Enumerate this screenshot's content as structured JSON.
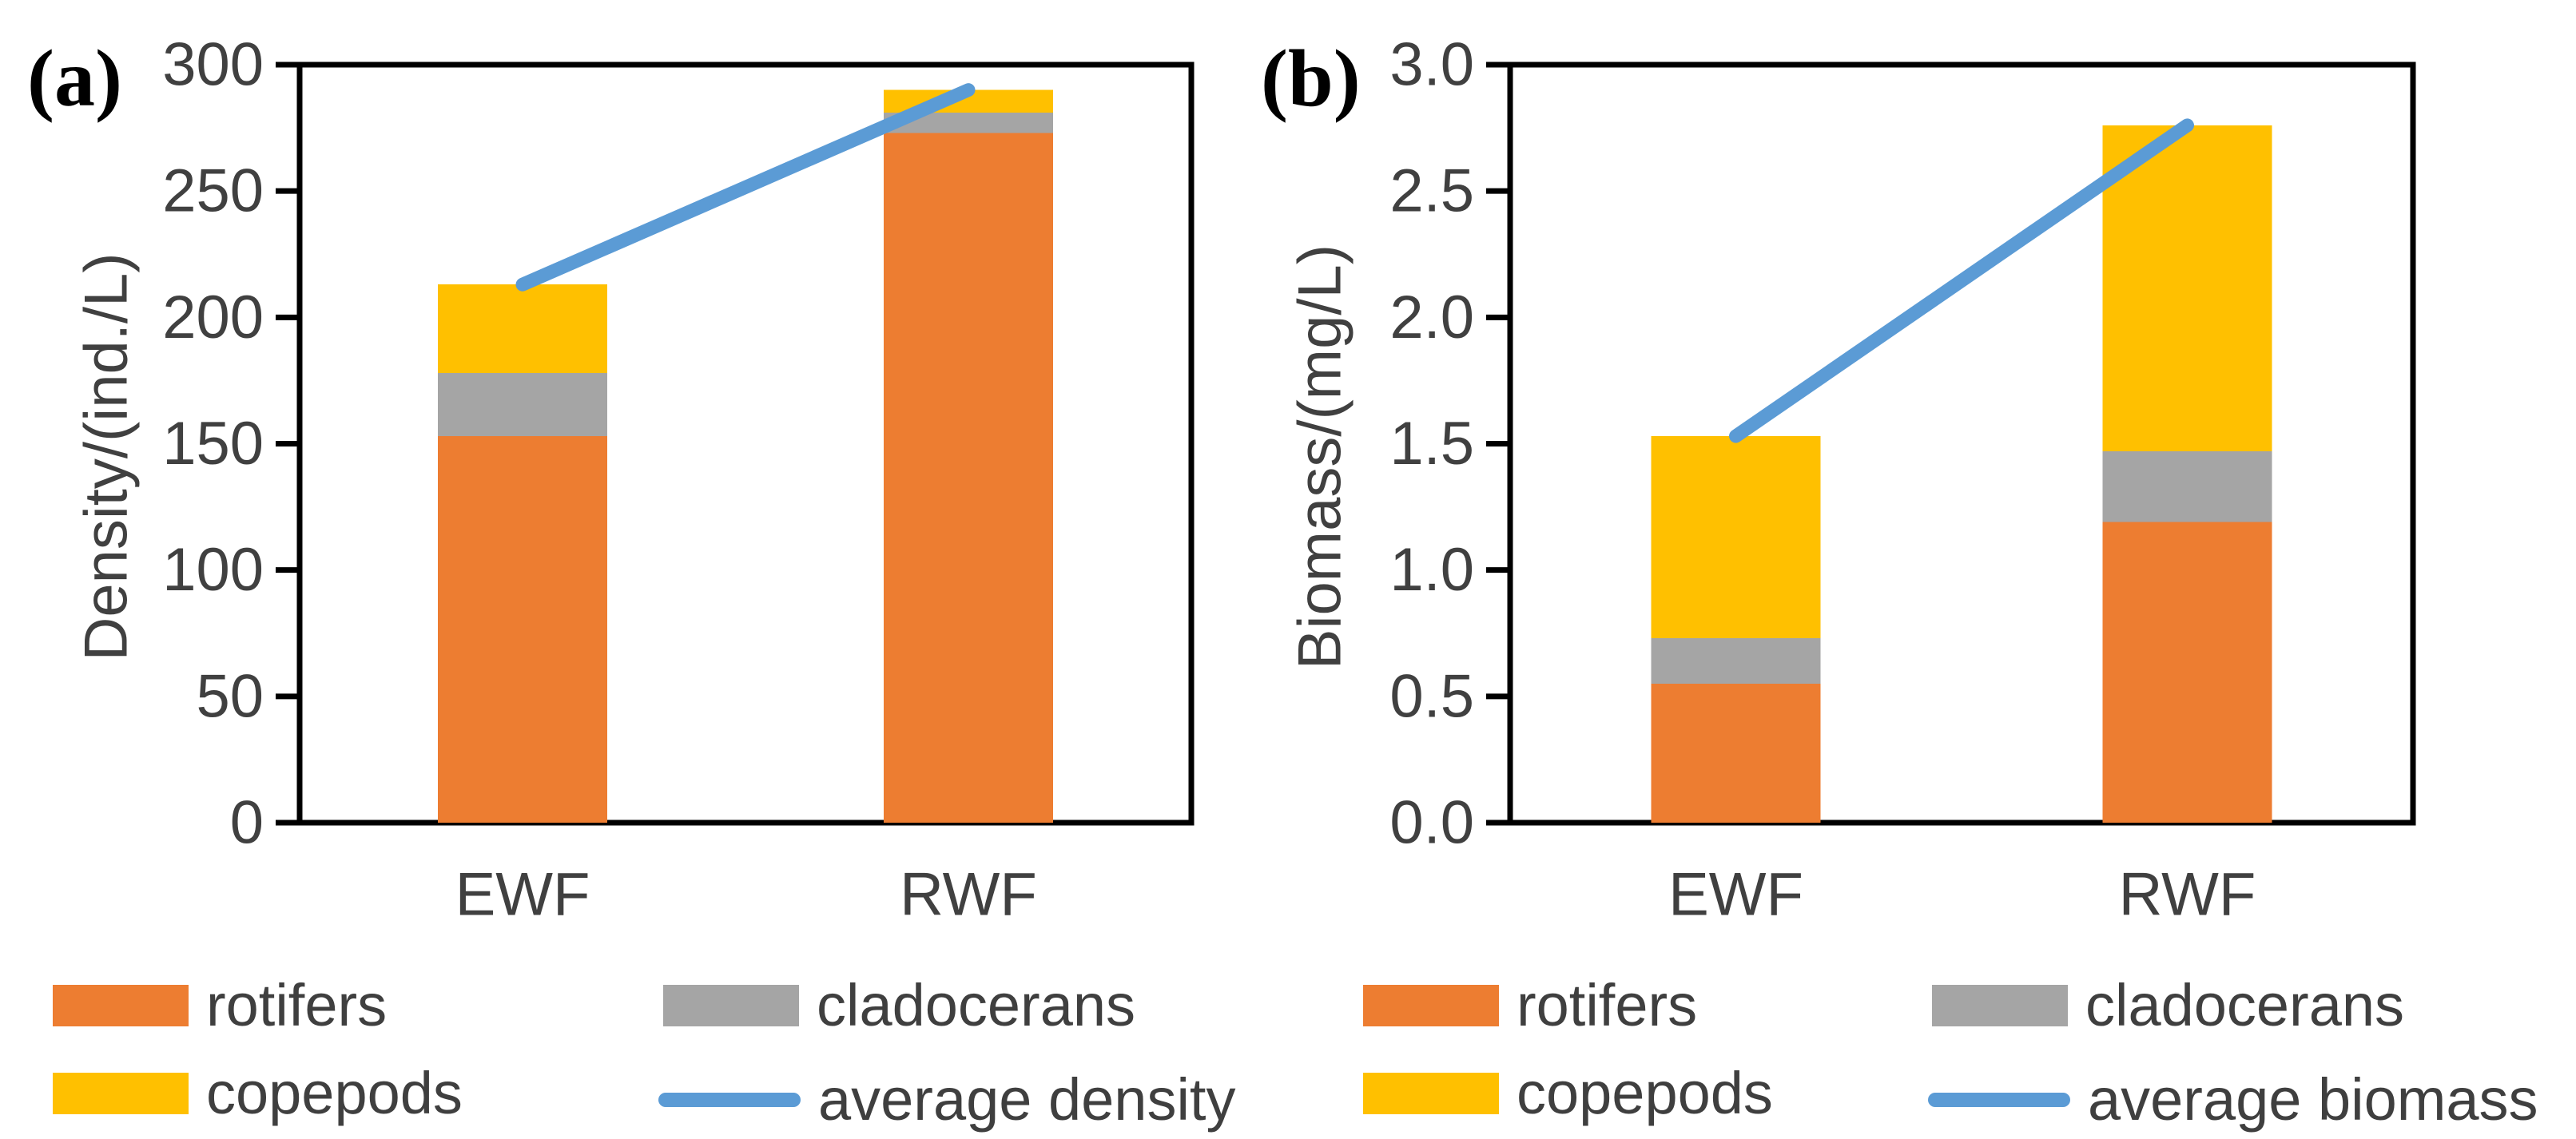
{
  "figure": {
    "panel_a_label": "(a)",
    "panel_b_label": "(b)"
  },
  "colors": {
    "rotifers": "#ED7D31",
    "cladocerans": "#A5A5A5",
    "copepods": "#FFC000",
    "line": "#5B9BD5",
    "axis": "#000000",
    "text": "#404040"
  },
  "chart_data": [
    {
      "id": "a",
      "type": "bar",
      "stacked": true,
      "panel_label": "(a)",
      "ylabel": "Density/(ind./L)",
      "xlabel": "",
      "categories": [
        "EWF",
        "RWF"
      ],
      "series": [
        {
          "name": "rotifers",
          "values": [
            153,
            273
          ]
        },
        {
          "name": "cladocerans",
          "values": [
            25,
            8
          ]
        },
        {
          "name": "copepods",
          "values": [
            35,
            9
          ]
        }
      ],
      "line_series": {
        "name": "average density",
        "values": [
          213,
          290
        ]
      },
      "totals": [
        213,
        290
      ],
      "ylim": [
        0,
        300
      ],
      "ytick_step": 50,
      "ytick_decimals": 0,
      "grid": false,
      "legend_position": "bottom"
    },
    {
      "id": "b",
      "type": "bar",
      "stacked": true,
      "panel_label": "(b)",
      "ylabel": "Biomass/(mg/L)",
      "xlabel": "",
      "categories": [
        "EWF",
        "RWF"
      ],
      "series": [
        {
          "name": "rotifers",
          "values": [
            0.55,
            1.19
          ]
        },
        {
          "name": "cladocerans",
          "values": [
            0.18,
            0.28
          ]
        },
        {
          "name": "copepods",
          "values": [
            0.8,
            1.29
          ]
        }
      ],
      "line_series": {
        "name": "average biomass",
        "values": [
          1.53,
          2.76
        ]
      },
      "totals": [
        1.53,
        2.76
      ],
      "ylim": [
        0,
        3.0
      ],
      "ytick_step": 0.5,
      "ytick_decimals": 1,
      "grid": false,
      "legend_position": "bottom"
    }
  ],
  "legends": [
    {
      "items": [
        {
          "label": "rotifers",
          "swatch": "rect",
          "color_key": "rotifers"
        },
        {
          "label": "cladocerans",
          "swatch": "rect",
          "color_key": "cladocerans"
        },
        {
          "label": "copepods",
          "swatch": "rect",
          "color_key": "copepods"
        },
        {
          "label": "average density",
          "swatch": "line",
          "color_key": "line"
        }
      ]
    },
    {
      "items": [
        {
          "label": "rotifers",
          "swatch": "rect",
          "color_key": "rotifers"
        },
        {
          "label": "cladocerans",
          "swatch": "rect",
          "color_key": "cladocerans"
        },
        {
          "label": "copepods",
          "swatch": "rect",
          "color_key": "copepods"
        },
        {
          "label": "average biomass",
          "swatch": "line",
          "color_key": "line"
        }
      ]
    }
  ]
}
